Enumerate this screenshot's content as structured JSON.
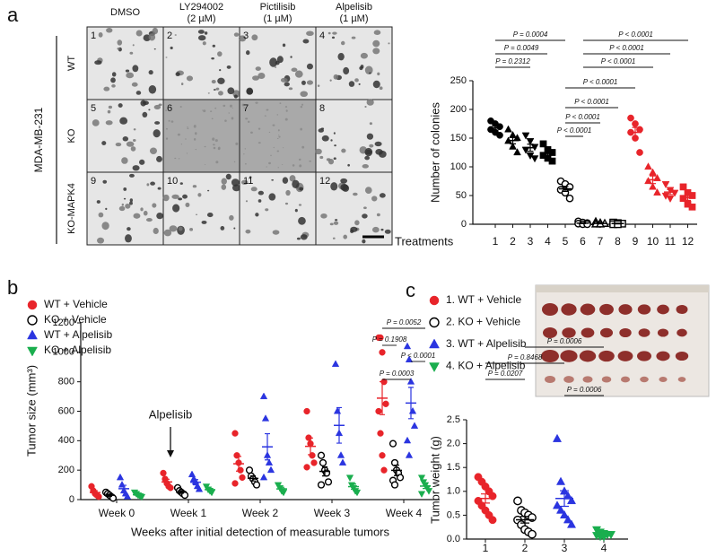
{
  "panel_labels": [
    "a",
    "b",
    "c"
  ],
  "micrographs": {
    "cell_line": "MDA-MB-231",
    "columns": [
      [
        "DMSO"
      ],
      [
        "LY294002",
        "(2 µM)"
      ],
      [
        "Pictilisib",
        "(1 µM)"
      ],
      [
        "Alpelisib",
        "(1 µM)"
      ]
    ],
    "rows": [
      "WT",
      "KO",
      "KO-MAPK4"
    ],
    "cell_numbers": [
      "1",
      "2",
      "3",
      "4",
      "5",
      "6",
      "7",
      "8",
      "9",
      "10",
      "11",
      "12"
    ]
  },
  "chart_data": [
    {
      "type": "dot",
      "ylabel": "Number of colonies",
      "xlabel": "Treatments",
      "categories": [
        "1",
        "2",
        "3",
        "4",
        "5",
        "6",
        "7",
        "8",
        "9",
        "10",
        "11",
        "12"
      ],
      "ylim": [
        0,
        250
      ],
      "yticks": [
        0,
        50,
        100,
        150,
        200,
        250
      ],
      "groups": [
        {
          "marker": "circle",
          "color": "#000000",
          "filled": true,
          "values": [
            180,
            175,
            170,
            165,
            160,
            155
          ]
        },
        {
          "marker": "triangle",
          "color": "#000000",
          "filled": true,
          "values": [
            165,
            155,
            150,
            145,
            135,
            125
          ]
        },
        {
          "marker": "triangle-down",
          "color": "#000000",
          "filled": true,
          "values": [
            155,
            145,
            135,
            130,
            120,
            115
          ]
        },
        {
          "marker": "square",
          "color": "#000000",
          "filled": true,
          "values": [
            140,
            130,
            125,
            120,
            115,
            110
          ]
        },
        {
          "marker": "circle",
          "color": "#000000",
          "filled": false,
          "values": [
            75,
            70,
            65,
            60,
            55,
            45
          ]
        },
        {
          "marker": "circle",
          "color": "#000000",
          "filled": false,
          "values": [
            5,
            3,
            2,
            1,
            0,
            0
          ]
        },
        {
          "marker": "triangle",
          "color": "#000000",
          "filled": false,
          "values": [
            4,
            2,
            1,
            0,
            0
          ]
        },
        {
          "marker": "square",
          "color": "#000000",
          "filled": false,
          "values": [
            3,
            2,
            1,
            0,
            0
          ]
        },
        {
          "marker": "circle",
          "color": "#e8242a",
          "filled": true,
          "values": [
            185,
            175,
            165,
            160,
            150,
            125
          ]
        },
        {
          "marker": "triangle",
          "color": "#e8242a",
          "filled": true,
          "values": [
            100,
            90,
            80,
            75,
            65,
            55
          ]
        },
        {
          "marker": "triangle-down",
          "color": "#e8242a",
          "filled": true,
          "values": [
            70,
            60,
            55,
            50,
            45
          ]
        },
        {
          "marker": "square",
          "color": "#e8242a",
          "filled": true,
          "values": [
            65,
            55,
            50,
            45,
            35,
            30
          ]
        }
      ],
      "annotations": [
        "P = 0.0004",
        "P = 0.0049",
        "P = 0.2312",
        "P < 0.0001",
        "P < 0.0001",
        "P < 0.0001",
        "P < 0.0001",
        "P < 0.0001",
        "P < 0.0001",
        "P < 0.0001"
      ]
    },
    {
      "type": "dot",
      "ylabel": "Tumor size (mm³)",
      "xlabel": "Weeks after initial detection of measurable tumors",
      "categories": [
        "Week 0",
        "Week 1",
        "Week 2",
        "Week 3",
        "Week 4"
      ],
      "ylim": [
        0,
        1200
      ],
      "yticks": [
        0,
        200,
        400,
        600,
        800,
        1000,
        1200
      ],
      "legend": true,
      "series": [
        {
          "name": "WT + Vehicle",
          "marker": "circle",
          "color": "#e8242a",
          "filled": true,
          "values": [
            [
              90,
              60,
              40,
              30,
              20
            ],
            [
              180,
              140,
              110,
              90,
              80
            ],
            [
              450,
              300,
              250,
              200,
              150,
              110
            ],
            [
              600,
              420,
              380,
              300,
              250,
              220
            ],
            [
              1100,
              1100,
              1000,
              800,
              650,
              600,
              450,
              300,
              200
            ]
          ]
        },
        {
          "name": "KO + Vehicle",
          "marker": "circle",
          "color": "#000000",
          "filled": false,
          "values": [
            [
              50,
              40,
              30,
              20,
              10
            ],
            [
              80,
              60,
              50,
              40,
              30
            ],
            [
              200,
              160,
              140,
              120,
              100
            ],
            [
              300,
              250,
              200,
              180,
              120,
              100
            ],
            [
              380,
              250,
              200,
              180,
              150,
              130,
              100
            ]
          ]
        },
        {
          "name": "WT + Alpelisib",
          "marker": "triangle",
          "color": "#2b35e0",
          "filled": true,
          "values": [
            [
              150,
              100,
              60,
              40,
              20
            ],
            [
              170,
              140,
              120,
              90,
              70
            ],
            [
              700,
              550,
              300,
              250,
              200,
              150
            ],
            [
              920,
              600,
              450,
              300,
              250
            ],
            [
              1040,
              950,
              800,
              600,
              500,
              400,
              300
            ]
          ]
        },
        {
          "name": "KO + Alpelisib",
          "marker": "triangle-down",
          "color": "#1aae4e",
          "filled": true,
          "values": [
            [
              50,
              40,
              30,
              25,
              20
            ],
            [
              90,
              70,
              60,
              50
            ],
            [
              100,
              80,
              60,
              50
            ],
            [
              150,
              100,
              80,
              60,
              50
            ],
            [
              150,
              120,
              100,
              80,
              60,
              40
            ]
          ]
        }
      ],
      "arrow_label": "Alpelisib",
      "annotations": [
        "P = 0.0052",
        "P = 0.1908",
        "P < 0.0001",
        "P = 0.0003"
      ]
    },
    {
      "type": "dot",
      "ylabel": "Tumor weight (g)",
      "categories": [
        "1",
        "2",
        "3",
        "4"
      ],
      "ylim": [
        0,
        2.5
      ],
      "yticks": [
        {
          "value": 0,
          "label": "0.0"
        },
        0.5,
        {
          "value": 1,
          "label": "1.0"
        },
        1.5,
        {
          "value": 2,
          "label": "2.0"
        },
        2.5
      ],
      "legend": true,
      "groups": [
        {
          "name": "1.  WT + Vehicle",
          "marker": "circle",
          "color": "#e8242a",
          "filled": true,
          "values": [
            1.3,
            1.2,
            1.1,
            1.0,
            0.9,
            0.8,
            0.7,
            0.6,
            0.5,
            0.4
          ]
        },
        {
          "name": "2.  KO + Vehicle",
          "marker": "circle",
          "color": "#000000",
          "filled": false,
          "values": [
            0.8,
            0.6,
            0.55,
            0.5,
            0.45,
            0.4,
            0.3,
            0.2,
            0.15,
            0.1
          ]
        },
        {
          "name": "3.  WT + Alpelisib",
          "marker": "triangle",
          "color": "#2b35e0",
          "filled": true,
          "values": [
            2.1,
            1.2,
            1.0,
            0.9,
            0.8,
            0.7,
            0.6,
            0.5,
            0.4,
            0.3
          ]
        },
        {
          "name": "4.  KO + Alpelisib",
          "marker": "triangle-down",
          "color": "#1aae4e",
          "filled": true,
          "values": [
            0.2,
            0.15,
            0.12,
            0.1,
            0.1,
            0.08,
            0.06,
            0.05
          ]
        }
      ],
      "annotations": [
        "P = 0.0006",
        "P = 0.8468",
        "P = 0.0207",
        "P = 0.0006"
      ]
    }
  ]
}
